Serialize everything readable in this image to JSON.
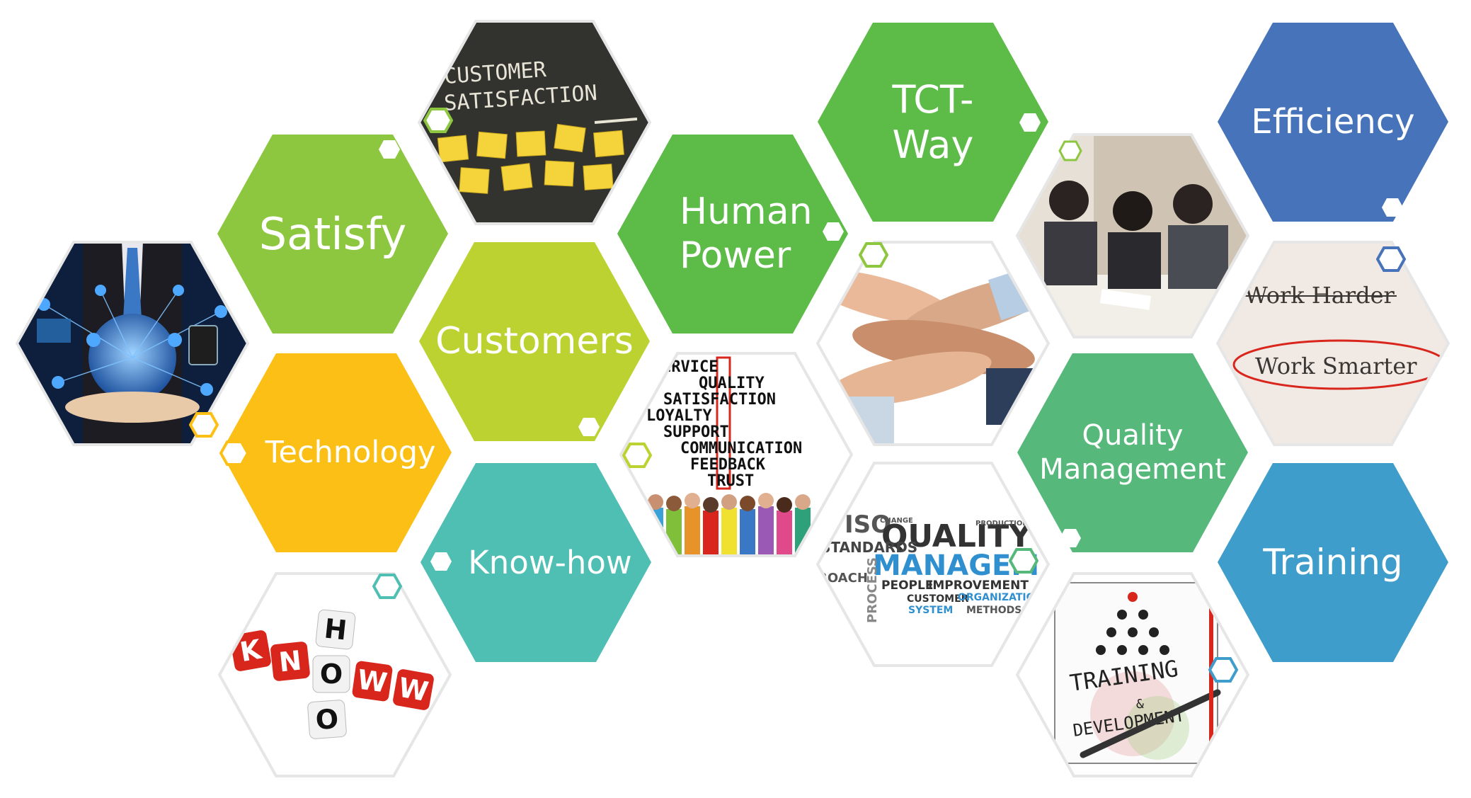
{
  "hexes": [
    {
      "id": "satisfy",
      "type": "text",
      "label": "Satisfy",
      "fill": "#8dc63f",
      "badge": "#ffffff"
    },
    {
      "id": "customers",
      "type": "text",
      "label": "Customers",
      "fill": "#bcd231",
      "badge": "#ffffff"
    },
    {
      "id": "technology",
      "type": "text",
      "label": "Technology",
      "fill": "#fbbf15",
      "badge": "#ffffff"
    },
    {
      "id": "know-how",
      "type": "text",
      "label": "Know-how",
      "fill": "#4fbfb4",
      "badge": "#ffffff"
    },
    {
      "id": "human-power",
      "type": "text",
      "label": "Human Power",
      "fill": "#5dbb47",
      "badge": "#ffffff"
    },
    {
      "id": "tct-way",
      "type": "text",
      "label": "TCT- Way",
      "fill": "#5dbb47",
      "badge": "#ffffff"
    },
    {
      "id": "efficiency",
      "type": "text",
      "label": "Efficiency",
      "fill": "#4673b9",
      "badge": "#ffffff"
    },
    {
      "id": "quality-management",
      "type": "text",
      "label": "Quality Management",
      "fill": "#56b97b",
      "badge": "#ffffff"
    },
    {
      "id": "training",
      "type": "text",
      "label": "Training",
      "fill": "#3e9dcb",
      "badge": "#ffffff"
    }
  ],
  "images": {
    "chalkboard": {
      "line1": "CUSTOMER",
      "line2": "SATISFACTION"
    },
    "crossword": {
      "lines": [
        "ERVICE",
        "QUALITY",
        "SATISFACTION",
        "LOYALTY",
        "SUPPORT",
        "COMMUNICATION",
        "FEEDBACK",
        "TRUST"
      ]
    },
    "know_blocks": {
      "letters": [
        "K",
        "N",
        "O",
        "W",
        "H",
        "O",
        "W"
      ]
    },
    "quality_cloud": {
      "words": [
        "ISO",
        "QUALITY",
        "MANAGEM",
        "STANDARDS",
        "PROCESS",
        "PEOPLE",
        "IMPROVEMENT",
        "CUSTOMER",
        "SYSTEM",
        "ORGANIZATION",
        "METHODS",
        "ROACH",
        "CHANGE",
        "PRODUCTION"
      ]
    },
    "work_paper": {
      "line1": "Work Harder",
      "line2": "Work Smarter"
    },
    "training_notebook": {
      "line1": "TRAINING",
      "line2": "&",
      "line3": "DEVELOPMENT"
    }
  },
  "colors": {
    "outline": "#e6e6e6",
    "badge_green": "#8dc63f",
    "badge_blue": "#4673b9",
    "badge_teal": "#4fbfb4",
    "badge_yellow": "#fbbf15"
  }
}
